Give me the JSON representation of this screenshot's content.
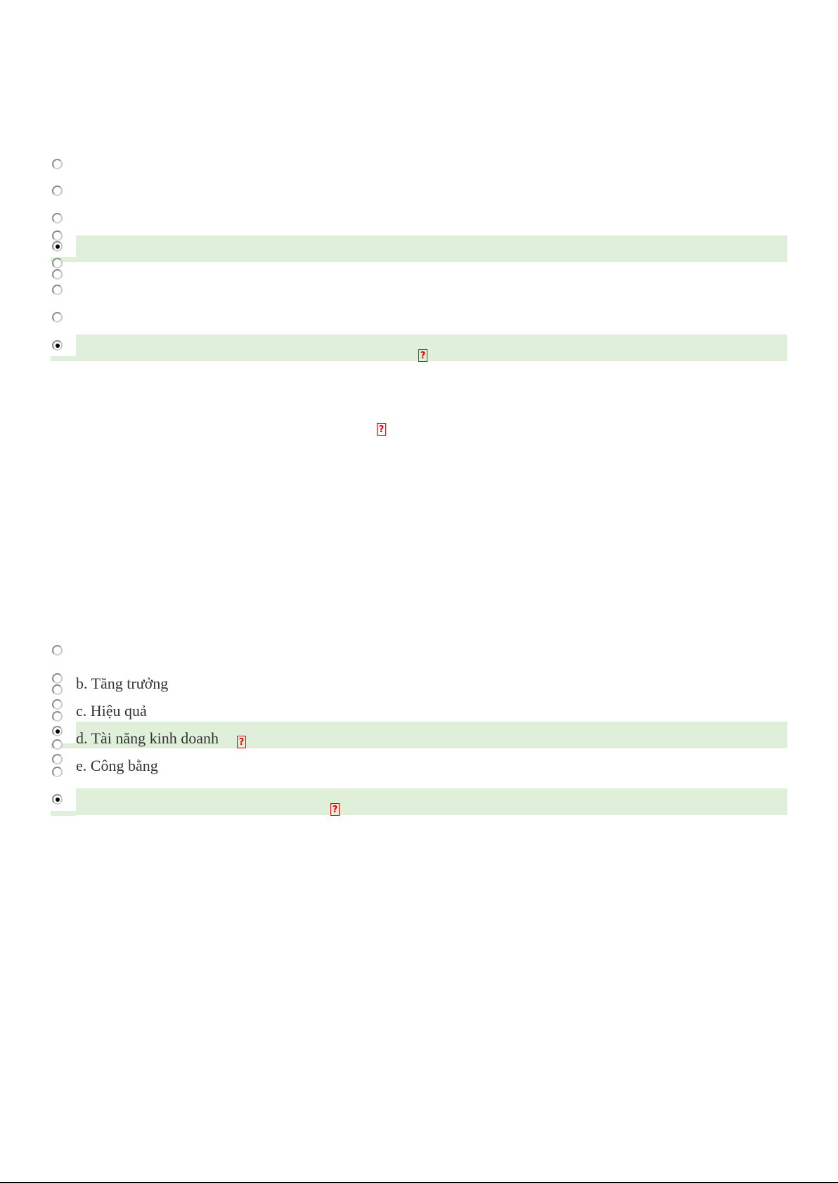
{
  "section1": {
    "selected": [
      4,
      9
    ]
  },
  "section2": {
    "options": [
      "b. Tăng trưởng",
      "c. Hiệu quả",
      "d. Tài năng kinh doanh",
      "e. Công bằng"
    ],
    "selected_option": "d. Tài năng kinh doanh"
  },
  "missing_glyph": "?",
  "colors": {
    "correct_band": "#dfefda",
    "missing_glyph": "#ee0000"
  }
}
